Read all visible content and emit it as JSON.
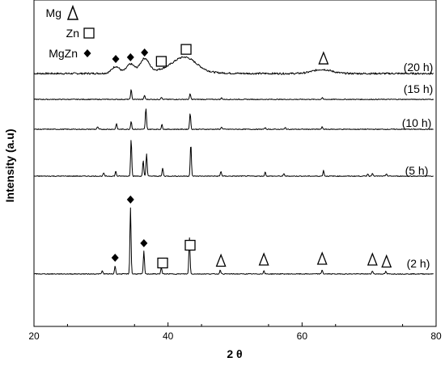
{
  "chart_data": {
    "type": "line",
    "xlabel": "2 θ",
    "ylabel": "Intensity (a.u)",
    "xlim": [
      20,
      80
    ],
    "x_ticks": [
      20,
      40,
      60,
      80
    ],
    "legend": {
      "placement": "top-left",
      "entries": [
        {
          "label": "Mg",
          "marker": "triangle"
        },
        {
          "label": "Zn",
          "marker": "square"
        },
        {
          "label": "MgZn",
          "marker": "diamond"
        }
      ]
    },
    "series": [
      {
        "name": "(20 h)",
        "baseline_rel": 0.0,
        "broad_peaks": [
          {
            "x": 32.2,
            "h": 8,
            "w": 0.8
          },
          {
            "x": 34.4,
            "h": 10,
            "w": 0.8
          },
          {
            "x": 36.5,
            "h": 16,
            "w": 0.9
          },
          {
            "x": 42.5,
            "h": 17,
            "w": 2.4
          },
          {
            "x": 63.0,
            "h": 5,
            "w": 2.0
          }
        ],
        "annotations": [
          {
            "x": 32.2,
            "marker": "diamond"
          },
          {
            "x": 34.4,
            "marker": "diamond"
          },
          {
            "x": 36.5,
            "marker": "diamond"
          },
          {
            "x": 39.0,
            "marker": "square"
          },
          {
            "x": 42.7,
            "marker": "square"
          },
          {
            "x": 63.2,
            "marker": "triangle"
          }
        ]
      },
      {
        "name": "(15 h)",
        "peaks": [
          {
            "x": 34.5,
            "h": 12
          },
          {
            "x": 36.5,
            "h": 5
          },
          {
            "x": 39.0,
            "h": 3
          },
          {
            "x": 43.3,
            "h": 7
          },
          {
            "x": 48.0,
            "h": 2
          },
          {
            "x": 63.0,
            "h": 2
          }
        ],
        "annotations": []
      },
      {
        "name": "(10 h)",
        "peaks": [
          {
            "x": 29.5,
            "h": 3
          },
          {
            "x": 32.3,
            "h": 7
          },
          {
            "x": 34.5,
            "h": 10
          },
          {
            "x": 36.7,
            "h": 26
          },
          {
            "x": 39.1,
            "h": 6
          },
          {
            "x": 43.3,
            "h": 20
          },
          {
            "x": 48.0,
            "h": 3
          },
          {
            "x": 54.5,
            "h": 2
          },
          {
            "x": 57.5,
            "h": 2
          },
          {
            "x": 63.0,
            "h": 3
          }
        ],
        "annotations": []
      },
      {
        "name": "(5 h)",
        "peaks": [
          {
            "x": 30.4,
            "h": 4
          },
          {
            "x": 32.2,
            "h": 6
          },
          {
            "x": 34.5,
            "h": 46
          },
          {
            "x": 36.3,
            "h": 19
          },
          {
            "x": 36.8,
            "h": 28
          },
          {
            "x": 39.2,
            "h": 10
          },
          {
            "x": 43.4,
            "h": 40
          },
          {
            "x": 47.9,
            "h": 6
          },
          {
            "x": 54.5,
            "h": 5
          },
          {
            "x": 57.3,
            "h": 3
          },
          {
            "x": 63.2,
            "h": 7
          },
          {
            "x": 69.8,
            "h": 3
          },
          {
            "x": 70.5,
            "h": 4
          },
          {
            "x": 72.6,
            "h": 3
          }
        ],
        "annotations": []
      },
      {
        "name": "(2 h)",
        "peaks": [
          {
            "x": 30.2,
            "h": 4
          },
          {
            "x": 32.1,
            "h": 10
          },
          {
            "x": 34.4,
            "h": 82
          },
          {
            "x": 36.4,
            "h": 28
          },
          {
            "x": 39.0,
            "h": 8
          },
          {
            "x": 43.2,
            "h": 45
          },
          {
            "x": 47.8,
            "h": 5
          },
          {
            "x": 54.3,
            "h": 4
          },
          {
            "x": 63.0,
            "h": 5
          },
          {
            "x": 70.5,
            "h": 4
          },
          {
            "x": 72.5,
            "h": 3
          }
        ],
        "annotations": [
          {
            "x": 32.1,
            "marker": "diamond"
          },
          {
            "x": 34.4,
            "marker": "diamond"
          },
          {
            "x": 36.4,
            "marker": "diamond"
          },
          {
            "x": 39.2,
            "marker": "square"
          },
          {
            "x": 43.3,
            "marker": "square"
          },
          {
            "x": 47.9,
            "marker": "triangle"
          },
          {
            "x": 54.3,
            "marker": "triangle"
          },
          {
            "x": 63.0,
            "marker": "triangle"
          },
          {
            "x": 70.5,
            "marker": "triangle"
          },
          {
            "x": 72.6,
            "marker": "triangle"
          }
        ]
      }
    ]
  }
}
